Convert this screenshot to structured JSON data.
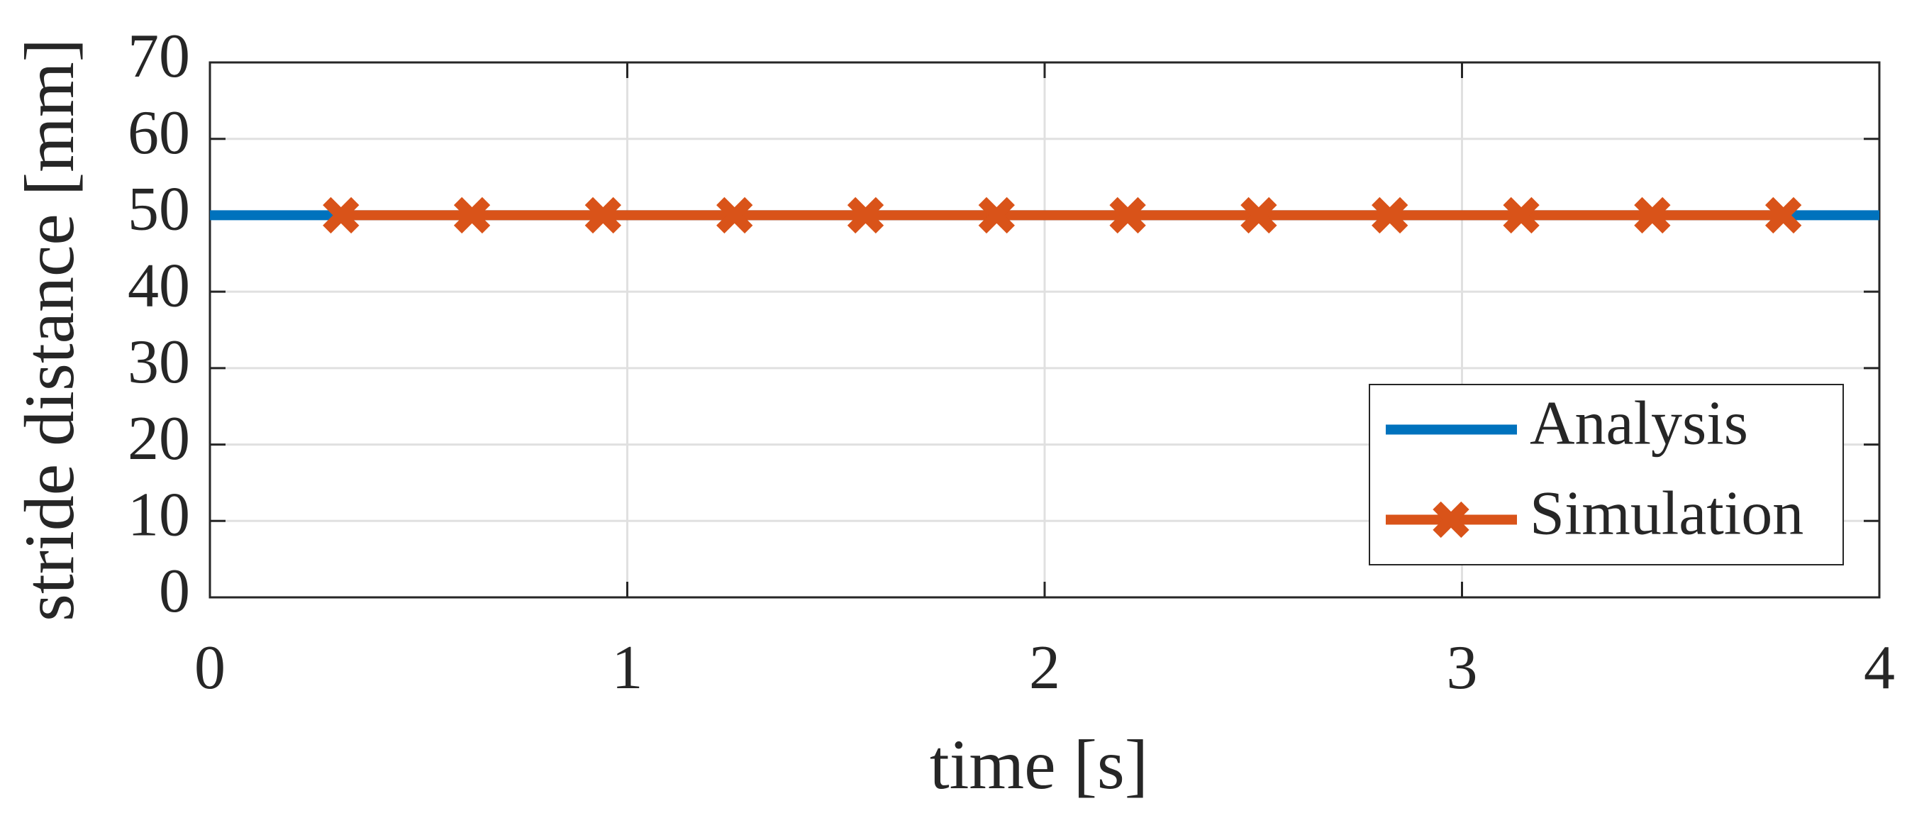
{
  "chart_data": {
    "type": "line",
    "xlabel": "time [s]",
    "ylabel": "stride distance [mm]",
    "xlim": [
      0,
      4
    ],
    "ylim": [
      0,
      70
    ],
    "xticks": [
      0,
      1,
      2,
      3,
      4
    ],
    "yticks": [
      0,
      10,
      20,
      30,
      40,
      50,
      60,
      70
    ],
    "grid": true,
    "legend": "lower right",
    "series": [
      {
        "name": "Analysis",
        "color": "#0072bd",
        "x": [
          0,
          4
        ],
        "values": [
          50,
          50
        ]
      },
      {
        "name": "Simulation",
        "color": "#d95319",
        "marker": "x",
        "x": [
          0.314,
          0.628,
          0.942,
          1.257,
          1.571,
          1.885,
          2.199,
          2.513,
          2.827,
          3.142,
          3.456,
          3.77
        ],
        "values": [
          50,
          50,
          50,
          50,
          50,
          50,
          50,
          50,
          50,
          50,
          50,
          50
        ]
      }
    ]
  }
}
